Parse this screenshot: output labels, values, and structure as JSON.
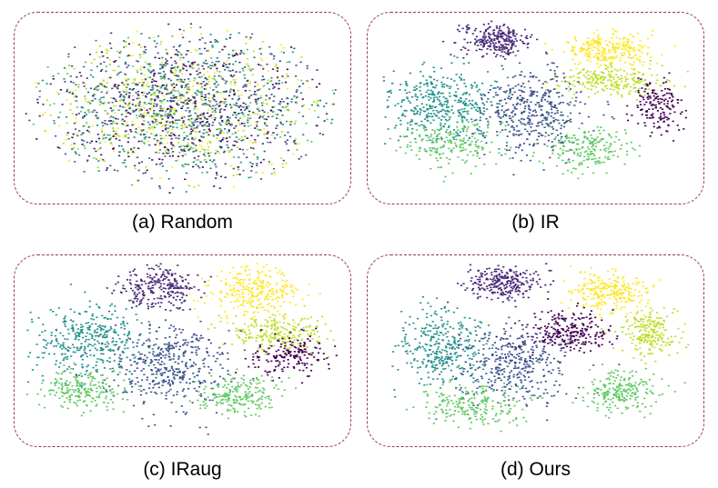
{
  "chart_data": [
    {
      "type": "scatter",
      "title": "(a) Random",
      "xlabel": "",
      "ylabel": "",
      "grid": false,
      "layout_mode": "mixed"
    },
    {
      "type": "scatter",
      "title": "(b) IR",
      "xlabel": "",
      "ylabel": "",
      "grid": false,
      "layout_mode": "ir"
    },
    {
      "type": "scatter",
      "title": "(c) IRaug",
      "xlabel": "",
      "ylabel": "",
      "grid": false,
      "layout_mode": "iraug"
    },
    {
      "type": "scatter",
      "title": "(d) Ours",
      "xlabel": "",
      "ylabel": "",
      "grid": false,
      "layout_mode": "ours"
    }
  ],
  "colors": {
    "classes": [
      "#440154",
      "#3b528b",
      "#21918c",
      "#5ec962",
      "#fde725",
      "#bddf26",
      "#2c728e",
      "#482878"
    ],
    "border": "#9b3a4c"
  }
}
